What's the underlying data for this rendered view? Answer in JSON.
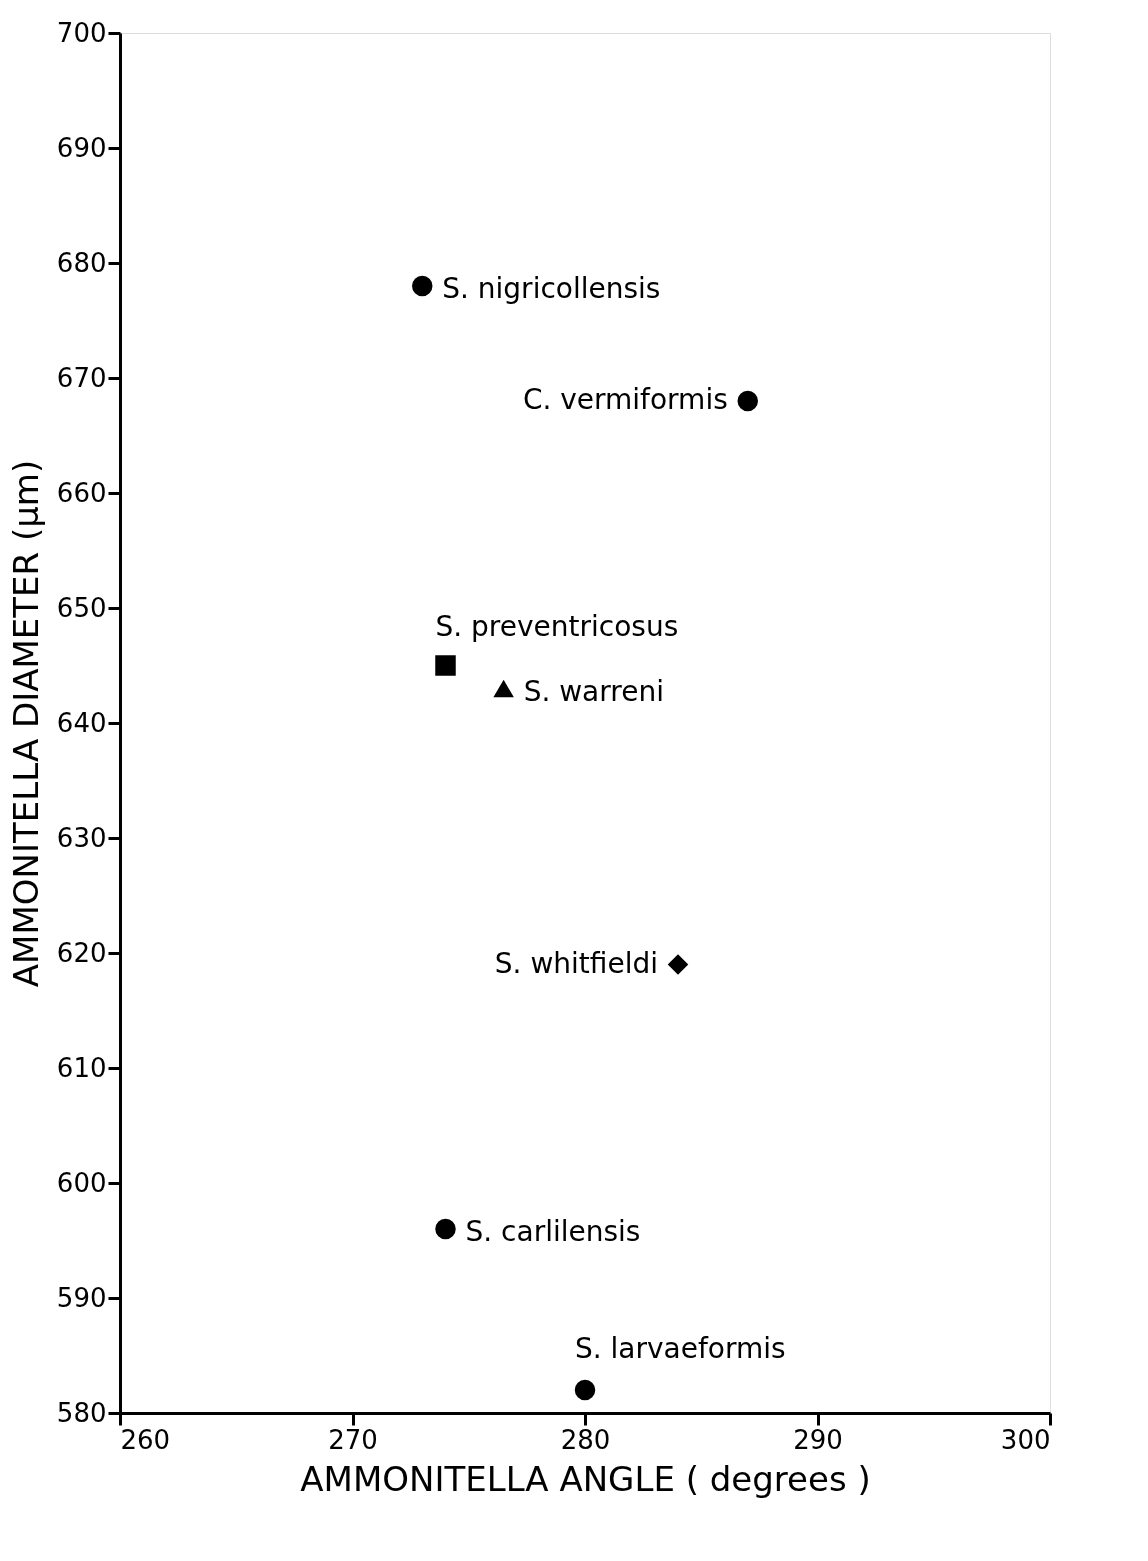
{
  "chart_data": {
    "type": "scatter",
    "xlabel": "AMMONITELLA ANGLE ( degrees )",
    "ylabel": "AMMONITELLA DIAMETER (μm)",
    "xlim": [
      260,
      300
    ],
    "xticks": [
      260,
      270,
      280,
      290,
      300
    ],
    "ylim": [
      580,
      700
    ],
    "yticks": [
      580,
      590,
      600,
      610,
      620,
      630,
      640,
      650,
      660,
      670,
      680,
      690,
      700
    ],
    "grid": false,
    "legend": false,
    "series": [
      {
        "name": "S. nigricollensis",
        "color": "#000000",
        "marker": "circle",
        "x": [
          273
        ],
        "values": [
          678
        ]
      },
      {
        "name": "C. vermiformis",
        "color": "#000000",
        "marker": "circle",
        "x": [
          287
        ],
        "values": [
          668
        ]
      },
      {
        "name": "S. preventricosus",
        "color": "#000000",
        "marker": "square",
        "x": [
          274
        ],
        "values": [
          645
        ]
      },
      {
        "name": "S. warreni",
        "color": "#000000",
        "marker": "triangle",
        "x": [
          276.5
        ],
        "values": [
          643
        ]
      },
      {
        "name": "S. whitfieldi",
        "color": "#000000",
        "marker": "diamond",
        "x": [
          284
        ],
        "values": [
          619
        ]
      },
      {
        "name": "S. carlilensis",
        "color": "#000000",
        "marker": "circle",
        "x": [
          274
        ],
        "values": [
          596
        ]
      },
      {
        "name": "S. larvaeformis",
        "color": "#000000",
        "marker": "circle",
        "x": [
          280
        ],
        "values": [
          582
        ]
      }
    ]
  }
}
